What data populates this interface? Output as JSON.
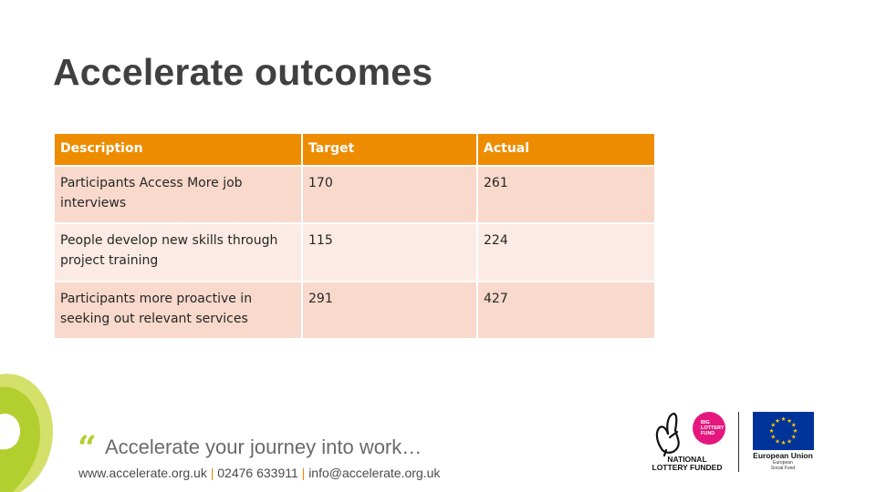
{
  "slide": {
    "title": "Accelerate outcomes"
  },
  "table": {
    "headers": [
      "Description",
      "Target",
      "Actual"
    ],
    "rows": [
      [
        "Participants Access More job interviews",
        "170",
        "261"
      ],
      [
        "People develop new skills through project training",
        "115",
        "224"
      ],
      [
        "Participants more proactive in seeking out relevant services",
        "291",
        "427"
      ]
    ]
  },
  "footer": {
    "quote_glyph": "“",
    "tagline": "Accelerate your journey into work…",
    "website": "www.accelerate.org.uk",
    "separator": "|",
    "phone": "02476 633911",
    "email": "info@accelerate.org.uk"
  },
  "logos": {
    "lottery_line1": "NATIONAL",
    "lottery_line2": "LOTTERY FUNDED",
    "lottery_badge_line1": "BIG",
    "lottery_badge_line2": "LOTTERY",
    "lottery_badge_line3": "FUND",
    "eu_name": "European Union",
    "eu_fund_line1": "European",
    "eu_fund_line2": "Social Fund"
  },
  "colors": {
    "header_orange": "#ee8c00",
    "row_odd": "#f8d9cb",
    "row_even": "#fcebe5",
    "brand_green": "#b2cf2f",
    "lottery_pink": "#e5177e",
    "eu_blue": "#003399",
    "eu_gold": "#ffcc00"
  },
  "icons": [
    "quote-mark-icon",
    "brand-swoosh-icon",
    "lottery-hand-icon",
    "eu-flag-icon"
  ]
}
